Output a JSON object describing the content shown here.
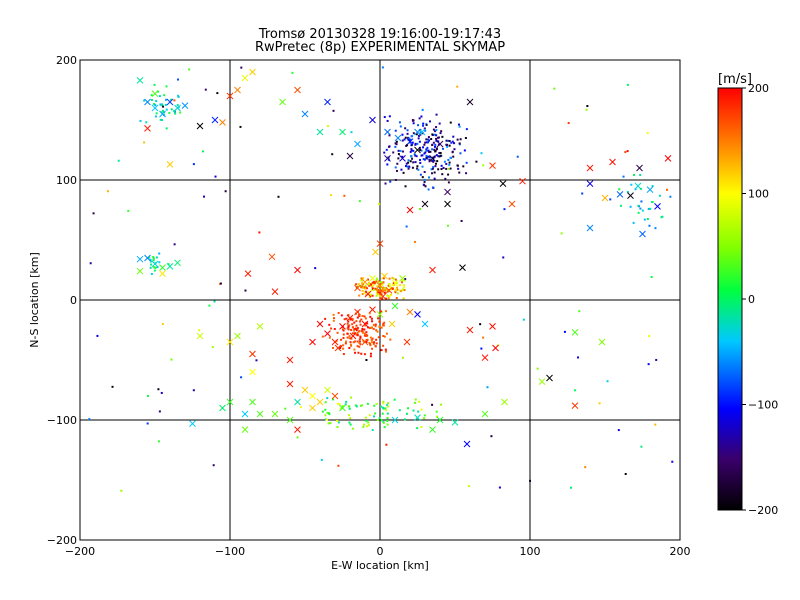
{
  "chart_data": {
    "type": "scatter",
    "title": "Tromsø 20130328 19:16:00-19:17:43",
    "subtitle": "RwPretec (8p) EXPERIMENTAL SKYMAP",
    "xlabel": "E-W location [km]",
    "ylabel": "N-S location [km]",
    "xlim": [
      -200,
      200
    ],
    "ylim": [
      -200,
      200
    ],
    "xticks": [
      -200,
      -100,
      0,
      100,
      200
    ],
    "yticks": [
      -200,
      -100,
      0,
      100,
      200
    ],
    "grid_lines_x": [
      -100,
      0,
      100
    ],
    "grid_lines_y": [
      -100,
      0,
      100
    ],
    "grid": true,
    "colorbar": {
      "label": "[m/s]",
      "range": [
        -200,
        200
      ],
      "ticks": [
        200,
        100,
        0,
        -100,
        -200
      ],
      "colormap": [
        "#000000",
        "#5a0090",
        "#0000ff",
        "#00c8ff",
        "#00ff00",
        "#ffff00",
        "#ff0000"
      ]
    },
    "marker_types": [
      "dot",
      "cross"
    ],
    "clusters": [
      {
        "region": "center-east north",
        "x": [
          0,
          60
        ],
        "y": [
          90,
          160
        ],
        "velocity": [
          -200,
          -50
        ]
      },
      {
        "region": "north-west",
        "x": [
          -160,
          -130
        ],
        "y": [
          140,
          180
        ],
        "velocity": [
          -60,
          20
        ]
      },
      {
        "region": "origin north",
        "x": [
          -20,
          20
        ],
        "y": [
          0,
          20
        ],
        "velocity": [
          60,
          200
        ]
      },
      {
        "region": "origin south",
        "x": [
          -40,
          10
        ],
        "y": [
          -50,
          -5
        ],
        "velocity": [
          150,
          200
        ]
      },
      {
        "region": "south",
        "x": [
          -60,
          50
        ],
        "y": [
          -110,
          -80
        ],
        "velocity": [
          -30,
          100
        ]
      },
      {
        "region": "far east",
        "x": [
          150,
          200
        ],
        "y": [
          50,
          110
        ],
        "velocity": [
          -80,
          0
        ]
      },
      {
        "region": "west",
        "x": [
          -160,
          -140
        ],
        "y": [
          20,
          40
        ],
        "velocity": [
          -50,
          40
        ]
      }
    ],
    "points": [
      {
        "x": 5,
        "y": 140,
        "v": -70,
        "m": "x"
      },
      {
        "x": 12,
        "y": 135,
        "v": -60,
        "m": "x"
      },
      {
        "x": 20,
        "y": 132,
        "v": -90,
        "m": "x"
      },
      {
        "x": 25,
        "y": 125,
        "v": -200,
        "m": "x"
      },
      {
        "x": 35,
        "y": 118,
        "v": -180,
        "m": "x"
      },
      {
        "x": 40,
        "y": 130,
        "v": -160,
        "m": "x"
      },
      {
        "x": 15,
        "y": 118,
        "v": -120,
        "m": "x"
      },
      {
        "x": 28,
        "y": 140,
        "v": -40,
        "m": "x"
      },
      {
        "x": 30,
        "y": 80,
        "v": -190,
        "m": "x"
      },
      {
        "x": 45,
        "y": 90,
        "v": -150,
        "m": "x"
      },
      {
        "x": 55,
        "y": 27,
        "v": -200,
        "m": "x"
      },
      {
        "x": 60,
        "y": 165,
        "v": -180,
        "m": "x"
      },
      {
        "x": 82,
        "y": 97,
        "v": -200,
        "m": "x"
      },
      {
        "x": 95,
        "y": 99,
        "v": 190,
        "m": "x"
      },
      {
        "x": 75,
        "y": 112,
        "v": 180,
        "m": "x"
      },
      {
        "x": 88,
        "y": 80,
        "v": 170,
        "m": "x"
      },
      {
        "x": 140,
        "y": 110,
        "v": 190,
        "m": "x"
      },
      {
        "x": 155,
        "y": 115,
        "v": 195,
        "m": "x"
      },
      {
        "x": 173,
        "y": 110,
        "v": -170,
        "m": "x"
      },
      {
        "x": 192,
        "y": 118,
        "v": 200,
        "m": "x"
      },
      {
        "x": 140,
        "y": 97,
        "v": -110,
        "m": "x"
      },
      {
        "x": 160,
        "y": 88,
        "v": -70,
        "m": "x"
      },
      {
        "x": 167,
        "y": 87,
        "v": -190,
        "m": "x"
      },
      {
        "x": 180,
        "y": 92,
        "v": -50,
        "m": "x"
      },
      {
        "x": 185,
        "y": 78,
        "v": -100,
        "m": "x"
      },
      {
        "x": 172,
        "y": 95,
        "v": -30,
        "m": "x"
      },
      {
        "x": 150,
        "y": 85,
        "v": 130,
        "m": "x"
      },
      {
        "x": 140,
        "y": 60,
        "v": -60,
        "m": "x"
      },
      {
        "x": 175,
        "y": 55,
        "v": -70,
        "m": "x"
      },
      {
        "x": -155,
        "y": 165,
        "v": -60,
        "m": "x"
      },
      {
        "x": -150,
        "y": 160,
        "v": -40,
        "m": "x"
      },
      {
        "x": -145,
        "y": 155,
        "v": -50,
        "m": "x"
      },
      {
        "x": -140,
        "y": 165,
        "v": -80,
        "m": "x"
      },
      {
        "x": -135,
        "y": 160,
        "v": -30,
        "m": "x"
      },
      {
        "x": -130,
        "y": 162,
        "v": -55,
        "m": "x"
      },
      {
        "x": -160,
        "y": 183,
        "v": -20,
        "m": "x"
      },
      {
        "x": -150,
        "y": 172,
        "v": 30,
        "m": "x"
      },
      {
        "x": -155,
        "y": 143,
        "v": 190,
        "m": "x"
      },
      {
        "x": -140,
        "y": 113,
        "v": 120,
        "m": "x"
      },
      {
        "x": -120,
        "y": 145,
        "v": -200,
        "m": "x"
      },
      {
        "x": -110,
        "y": 150,
        "v": -90,
        "m": "x"
      },
      {
        "x": -105,
        "y": 148,
        "v": 150,
        "m": "x"
      },
      {
        "x": -100,
        "y": 170,
        "v": 180,
        "m": "x"
      },
      {
        "x": -95,
        "y": 175,
        "v": 150,
        "m": "x"
      },
      {
        "x": -85,
        "y": 190,
        "v": 120,
        "m": "x"
      },
      {
        "x": -90,
        "y": 185,
        "v": 90,
        "m": "x"
      },
      {
        "x": -65,
        "y": 165,
        "v": 40,
        "m": "x"
      },
      {
        "x": -50,
        "y": 155,
        "v": -60,
        "m": "x"
      },
      {
        "x": -40,
        "y": 140,
        "v": -20,
        "m": "x"
      },
      {
        "x": -25,
        "y": 140,
        "v": -10,
        "m": "x"
      },
      {
        "x": -20,
        "y": 120,
        "v": -170,
        "m": "x"
      },
      {
        "x": -15,
        "y": 130,
        "v": -50,
        "m": "x"
      },
      {
        "x": -5,
        "y": 150,
        "v": -110,
        "m": "x"
      },
      {
        "x": -55,
        "y": 175,
        "v": 170,
        "m": "x"
      },
      {
        "x": -35,
        "y": 165,
        "v": -90,
        "m": "x"
      },
      {
        "x": -160,
        "y": 34,
        "v": -50,
        "m": "x"
      },
      {
        "x": -155,
        "y": 35,
        "v": -60,
        "m": "x"
      },
      {
        "x": -150,
        "y": 30,
        "v": -30,
        "m": "x"
      },
      {
        "x": -145,
        "y": 27,
        "v": 20,
        "m": "x"
      },
      {
        "x": -140,
        "y": 28,
        "v": -20,
        "m": "x"
      },
      {
        "x": -135,
        "y": 31,
        "v": -10,
        "m": "x"
      },
      {
        "x": -160,
        "y": 24,
        "v": 40,
        "m": "x"
      },
      {
        "x": -145,
        "y": 22,
        "v": 110,
        "m": "x"
      },
      {
        "x": -88,
        "y": 22,
        "v": 190,
        "m": "x"
      },
      {
        "x": -72,
        "y": 36,
        "v": 170,
        "m": "x"
      },
      {
        "x": -70,
        "y": 7,
        "v": 190,
        "m": "x"
      },
      {
        "x": -80,
        "y": -22,
        "v": 70,
        "m": "x"
      },
      {
        "x": -95,
        "y": -30,
        "v": 60,
        "m": "x"
      },
      {
        "x": -100,
        "y": -35,
        "v": 110,
        "m": "x"
      },
      {
        "x": -85,
        "y": -45,
        "v": 180,
        "m": "x"
      },
      {
        "x": -60,
        "y": -50,
        "v": 190,
        "m": "x"
      },
      {
        "x": -120,
        "y": -30,
        "v": 80,
        "m": "x"
      },
      {
        "x": -55,
        "y": 25,
        "v": 200,
        "m": "x"
      },
      {
        "x": -30,
        "y": -35,
        "v": 190,
        "m": "x"
      },
      {
        "x": -25,
        "y": -22,
        "v": 200,
        "m": "x"
      },
      {
        "x": -20,
        "y": -15,
        "v": 190,
        "m": "x"
      },
      {
        "x": -15,
        "y": -10,
        "v": 180,
        "m": "x"
      },
      {
        "x": -10,
        "y": -20,
        "v": 200,
        "m": "x"
      },
      {
        "x": -5,
        "y": -8,
        "v": 190,
        "m": "x"
      },
      {
        "x": -35,
        "y": -28,
        "v": 200,
        "m": "x"
      },
      {
        "x": -40,
        "y": -20,
        "v": 200,
        "m": "x"
      },
      {
        "x": -28,
        "y": -40,
        "v": 180,
        "m": "x"
      },
      {
        "x": -18,
        "y": -30,
        "v": 195,
        "m": "x"
      },
      {
        "x": -45,
        "y": -35,
        "v": 200,
        "m": "x"
      },
      {
        "x": -10,
        "y": -35,
        "v": 170,
        "m": "x"
      },
      {
        "x": 0,
        "y": -12,
        "v": 60,
        "m": "x"
      },
      {
        "x": 8,
        "y": -20,
        "v": 120,
        "m": "x"
      },
      {
        "x": 10,
        "y": -5,
        "v": 20,
        "m": "x"
      },
      {
        "x": 20,
        "y": -10,
        "v": 150,
        "m": "x"
      },
      {
        "x": 25,
        "y": -12,
        "v": -100,
        "m": "x"
      },
      {
        "x": 30,
        "y": -20,
        "v": -40,
        "m": "x"
      },
      {
        "x": 18,
        "y": -35,
        "v": 180,
        "m": "x"
      },
      {
        "x": 60,
        "y": -25,
        "v": 190,
        "m": "x"
      },
      {
        "x": 75,
        "y": -22,
        "v": 195,
        "m": "x"
      },
      {
        "x": 77,
        "y": -40,
        "v": 200,
        "m": "x"
      },
      {
        "x": 70,
        "y": -48,
        "v": 190,
        "m": "x"
      },
      {
        "x": -10,
        "y": 15,
        "v": 140,
        "m": "x"
      },
      {
        "x": -5,
        "y": 18,
        "v": 90,
        "m": "x"
      },
      {
        "x": 0,
        "y": 12,
        "v": 150,
        "m": "x"
      },
      {
        "x": 3,
        "y": 20,
        "v": 120,
        "m": "x"
      },
      {
        "x": 6,
        "y": 8,
        "v": 170,
        "m": "x"
      },
      {
        "x": 10,
        "y": 14,
        "v": 100,
        "m": "x"
      },
      {
        "x": -8,
        "y": 5,
        "v": 190,
        "m": "x"
      },
      {
        "x": 2,
        "y": 3,
        "v": 180,
        "m": "x"
      },
      {
        "x": 15,
        "y": 18,
        "v": 60,
        "m": "x"
      },
      {
        "x": -15,
        "y": 10,
        "v": 170,
        "m": "x"
      },
      {
        "x": 35,
        "y": 25,
        "v": 190,
        "m": "x"
      },
      {
        "x": -3,
        "y": 40,
        "v": 120,
        "m": "x"
      },
      {
        "x": 0,
        "y": 47,
        "v": 175,
        "m": "x"
      },
      {
        "x": -50,
        "y": -75,
        "v": 120,
        "m": "x"
      },
      {
        "x": -45,
        "y": -80,
        "v": 100,
        "m": "x"
      },
      {
        "x": -40,
        "y": -85,
        "v": 120,
        "m": "x"
      },
      {
        "x": -35,
        "y": -75,
        "v": 80,
        "m": "x"
      },
      {
        "x": -30,
        "y": -80,
        "v": 170,
        "m": "x"
      },
      {
        "x": -60,
        "y": -70,
        "v": 190,
        "m": "x"
      },
      {
        "x": -45,
        "y": -90,
        "v": 120,
        "m": "x"
      },
      {
        "x": -25,
        "y": -90,
        "v": 20,
        "m": "x"
      },
      {
        "x": -55,
        "y": -85,
        "v": -20,
        "m": "x"
      },
      {
        "x": -70,
        "y": -95,
        "v": 40,
        "m": "x"
      },
      {
        "x": -80,
        "y": -95,
        "v": 30,
        "m": "x"
      },
      {
        "x": -90,
        "y": -95,
        "v": -40,
        "m": "x"
      },
      {
        "x": -85,
        "y": -85,
        "v": 30,
        "m": "x"
      },
      {
        "x": -100,
        "y": -85,
        "v": 20,
        "m": "x"
      },
      {
        "x": -105,
        "y": -90,
        "v": -10,
        "m": "x"
      },
      {
        "x": -125,
        "y": -103,
        "v": -40,
        "m": "x"
      },
      {
        "x": -90,
        "y": -108,
        "v": 40,
        "m": "x"
      },
      {
        "x": -60,
        "y": -100,
        "v": 30,
        "m": "x"
      },
      {
        "x": -55,
        "y": -108,
        "v": 190,
        "m": "x"
      },
      {
        "x": -85,
        "y": -60,
        "v": 100,
        "m": "x"
      },
      {
        "x": 10,
        "y": -100,
        "v": -30,
        "m": "x"
      },
      {
        "x": 25,
        "y": -98,
        "v": -30,
        "m": "x"
      },
      {
        "x": 40,
        "y": -100,
        "v": 10,
        "m": "x"
      },
      {
        "x": 50,
        "y": -102,
        "v": -20,
        "m": "x"
      },
      {
        "x": 35,
        "y": -108,
        "v": 20,
        "m": "x"
      },
      {
        "x": 58,
        "y": -120,
        "v": -100,
        "m": "x"
      },
      {
        "x": 70,
        "y": -95,
        "v": 30,
        "m": "x"
      },
      {
        "x": 83,
        "y": -85,
        "v": 60,
        "m": "x"
      },
      {
        "x": 113,
        "y": -65,
        "v": -200,
        "m": "x"
      },
      {
        "x": 108,
        "y": -68,
        "v": 60,
        "m": "x"
      },
      {
        "x": 130,
        "y": -27,
        "v": 30,
        "m": "x"
      },
      {
        "x": 148,
        "y": -35,
        "v": 50,
        "m": "x"
      },
      {
        "x": 130,
        "y": -88,
        "v": 180,
        "m": "x"
      },
      {
        "x": 25,
        "y": 140,
        "v": -60,
        "m": "x"
      },
      {
        "x": 5,
        "y": 118,
        "v": -130,
        "m": "x"
      },
      {
        "x": 20,
        "y": 75,
        "v": 200,
        "m": "x"
      },
      {
        "x": 45,
        "y": 80,
        "v": -200,
        "m": "x"
      }
    ]
  }
}
